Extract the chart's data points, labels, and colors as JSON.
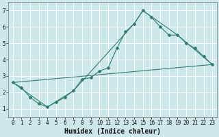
{
  "title": "",
  "xlabel": "Humidex (Indice chaleur)",
  "ylabel": "",
  "bg_color": "#cce8e8",
  "grid_color": "#ffffff",
  "line_color": "#2e7d6e",
  "xlim": [
    -0.5,
    23.5
  ],
  "ylim": [
    0.5,
    7.5
  ],
  "xticks": [
    0,
    1,
    2,
    3,
    4,
    5,
    6,
    7,
    8,
    9,
    10,
    11,
    12,
    13,
    14,
    15,
    16,
    17,
    18,
    19,
    20,
    21,
    22,
    23
  ],
  "yticks": [
    1,
    2,
    3,
    4,
    5,
    6,
    7
  ],
  "line1_x": [
    0,
    1,
    2,
    3,
    4,
    5,
    6,
    7,
    8,
    9,
    10,
    11,
    12,
    13,
    14,
    15,
    16,
    17,
    18,
    19,
    20,
    21,
    22,
    23
  ],
  "line1_y": [
    2.6,
    2.3,
    1.7,
    1.3,
    1.1,
    1.4,
    1.7,
    2.1,
    2.8,
    2.9,
    3.3,
    3.5,
    4.7,
    5.7,
    6.2,
    7.0,
    6.6,
    6.0,
    5.5,
    5.5,
    5.0,
    4.7,
    4.2,
    3.7
  ],
  "line2_x": [
    0,
    4,
    7,
    14,
    15,
    19,
    23
  ],
  "line2_y": [
    2.6,
    1.1,
    2.1,
    6.2,
    7.0,
    5.5,
    3.7
  ],
  "line3_x": [
    0,
    23
  ],
  "line3_y": [
    2.6,
    3.7
  ],
  "xlabel_fontsize": 7,
  "tick_fontsize": 5.5
}
